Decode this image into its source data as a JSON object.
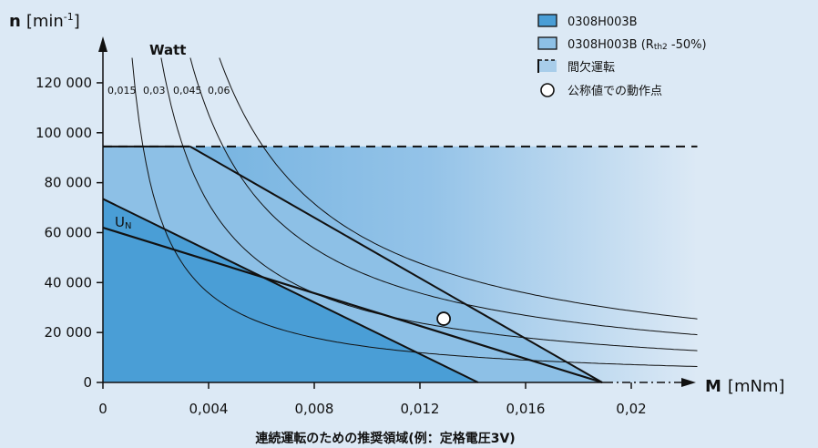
{
  "chart_data": {
    "type": "line",
    "title": "",
    "caption": "連続運転のための推奨領域(例：定格電圧3V)",
    "ylabel_main": "n",
    "ylabel_unit": "[min",
    "ylabel_sup": "-1",
    "ylabel_close": "]",
    "xlabel_main": "M",
    "xlabel_unit": "[mNm]",
    "xlim": [
      0,
      0.0245
    ],
    "ylim": [
      0,
      130000
    ],
    "x_ticks": [
      {
        "value": 0,
        "label": "0"
      },
      {
        "value": 0.004,
        "label": "0,004"
      },
      {
        "value": 0.008,
        "label": "0,008"
      },
      {
        "value": 0.012,
        "label": "0,012"
      },
      {
        "value": 0.016,
        "label": "0,016"
      },
      {
        "value": 0.02,
        "label": "0,02"
      }
    ],
    "y_ticks": [
      {
        "value": 0,
        "label": "0"
      },
      {
        "value": 20000,
        "label": "20 000"
      },
      {
        "value": 40000,
        "label": "40 000"
      },
      {
        "value": 60000,
        "label": "60 000"
      },
      {
        "value": 80000,
        "label": "80 000"
      },
      {
        "value": 100000,
        "label": "100 000"
      },
      {
        "value": 120000,
        "label": "120 000"
      }
    ],
    "watt_title": "Watt",
    "power_curves": [
      {
        "label": "0,015",
        "watts": 0.015
      },
      {
        "label": "0,03",
        "watts": 0.03
      },
      {
        "label": "0,045",
        "watts": 0.045
      },
      {
        "label": "0,06",
        "watts": 0.06
      }
    ],
    "un_label": "U",
    "un_sub": "N",
    "characteristic_line": {
      "x": [
        0,
        0.0189
      ],
      "y": [
        62000,
        0
      ]
    },
    "continuous_region": [
      [
        0,
        0
      ],
      [
        0,
        73500
      ],
      [
        0.0142,
        0
      ]
    ],
    "rth2_boundary": [
      [
        0.0033,
        94500
      ],
      [
        0.0189,
        0
      ]
    ],
    "intermittent_boundary_y": 94500,
    "intermittent_boundary_x_end": 0.0225,
    "operating_point": {
      "x": 0.0129,
      "y": 25500
    },
    "legend": [
      {
        "label": "0308H003B",
        "sub": "",
        "tail": "",
        "marker": "box-dark",
        "color": "#4a9ed6"
      },
      {
        "label": "0308H003B (R",
        "sub": "th2",
        "tail": " -50%)",
        "marker": "box-light",
        "color": "#8dc0e6"
      },
      {
        "label": "間欠運転",
        "sub": "",
        "tail": "",
        "marker": "dashed-box",
        "color": "#a8cdea"
      },
      {
        "label": "公称値での動作点",
        "sub": "",
        "tail": "",
        "marker": "circle",
        "color": "#ffffff"
      }
    ],
    "colors": {
      "background": "#dce9f5",
      "dark_region": "#4a9ed6",
      "light_region": "#8dc0e6",
      "line": "#111111"
    }
  }
}
